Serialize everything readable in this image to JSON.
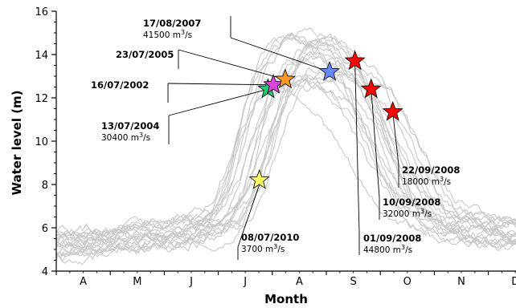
{
  "chart_data": {
    "type": "line",
    "title": "",
    "xlabel": "Month",
    "ylabel": "Water level (m)",
    "x_ticks": [
      "A",
      "M",
      "J",
      "J",
      "A",
      "S",
      "O",
      "N",
      "D"
    ],
    "y_ticks": [
      "4",
      "6",
      "8",
      "10",
      "12",
      "14",
      "16"
    ],
    "ylim": [
      4,
      16
    ],
    "xlim_months": [
      3.5,
      12.5
    ],
    "grid": false,
    "legend": "none",
    "background_series_color": "#c8c8c8",
    "background_series_description_count": 20,
    "events": [
      {
        "date": "08/07/2010",
        "flow": "3700",
        "unit": "m³/s",
        "month": 7.26,
        "level": 8.2,
        "color": "#ffff66"
      },
      {
        "date": "13/07/2004",
        "flow": "30400",
        "unit": "m³/s",
        "month": 7.42,
        "level": 12.4,
        "color": "#22cc77"
      },
      {
        "date": "16/07/2002",
        "flow": "",
        "unit": "",
        "month": 7.52,
        "level": 12.6,
        "color": "#dd44dd"
      },
      {
        "date": "23/07/2005",
        "flow": "",
        "unit": "",
        "month": 7.74,
        "level": 12.85,
        "color": "#ff9922"
      },
      {
        "date": "17/08/2007",
        "flow": "41500",
        "unit": "m³/s",
        "month": 8.56,
        "level": 13.2,
        "color": "#6688ff"
      },
      {
        "date": "01/09/2008",
        "flow": "44800",
        "unit": "m³/s",
        "month": 9.03,
        "level": 13.7,
        "color": "#ff0000"
      },
      {
        "date": "10/09/2008",
        "flow": "32000",
        "unit": "m³/s",
        "month": 9.33,
        "level": 12.4,
        "color": "#ff0000"
      },
      {
        "date": "22/09/2008",
        "flow": "18000",
        "unit": "m³/s",
        "month": 9.73,
        "level": 11.35,
        "color": "#ff0000"
      }
    ]
  }
}
